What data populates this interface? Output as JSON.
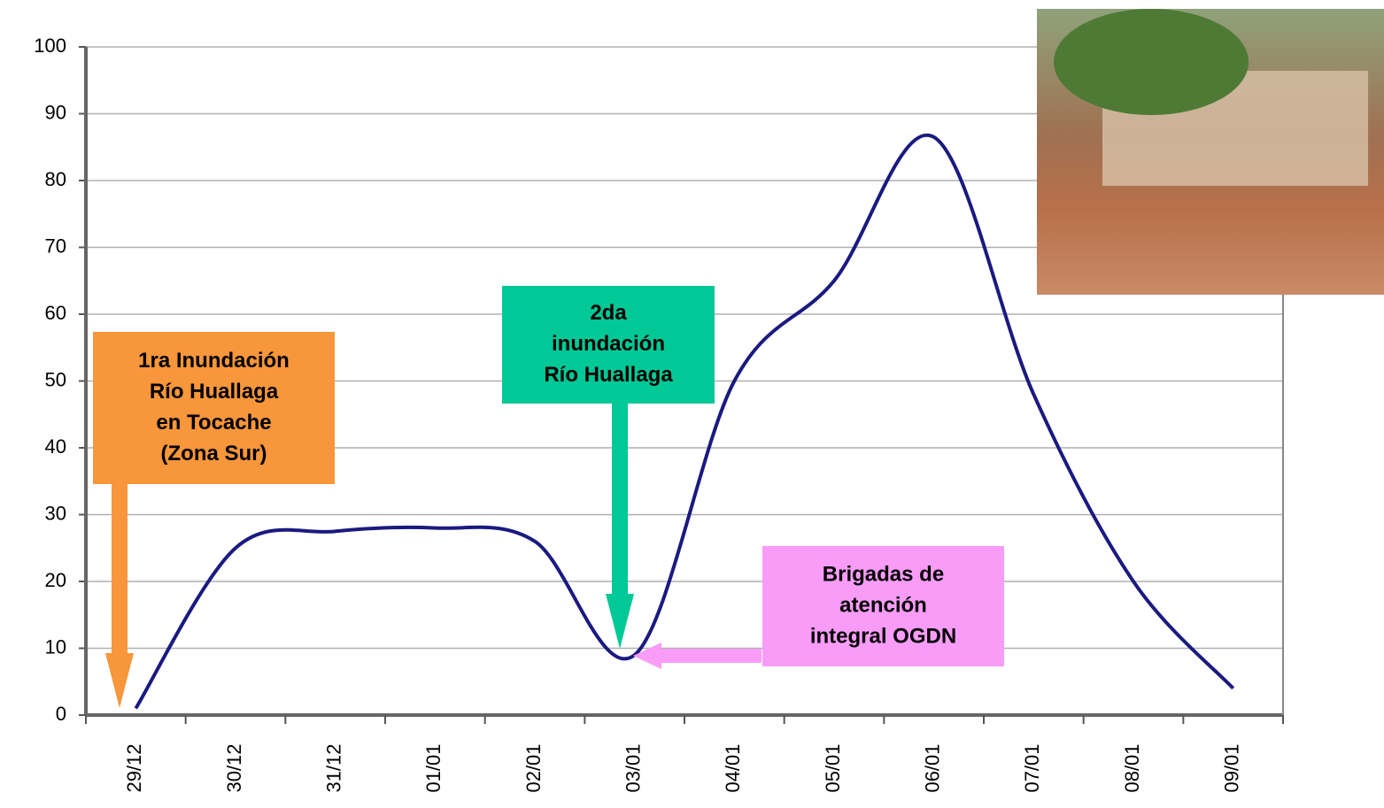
{
  "chart_data": {
    "type": "line",
    "categories": [
      "29/12",
      "30/12",
      "31/12",
      "01/01",
      "02/01",
      "03/01",
      "04/01",
      "05/01",
      "06/01",
      "07/01",
      "08/01",
      "09/01"
    ],
    "series": [
      {
        "name": null,
        "color": "#1a1a80",
        "values": [
          1,
          25,
          27.5,
          28,
          26,
          9,
          50,
          65,
          86.5,
          48,
          20,
          4
        ]
      }
    ],
    "ylim": [
      0,
      100
    ],
    "yticks": [
      0,
      10,
      20,
      30,
      40,
      50,
      60,
      70,
      80,
      90,
      100
    ],
    "grid": true,
    "annotations": [
      {
        "lines": [
          "1ra Inundación",
          "Río Huallaga",
          "en Tocache",
          "(Zona Sur)"
        ],
        "color": "#f7963a"
      },
      {
        "lines": [
          "2da",
          "inundación",
          "Río Huallaga"
        ],
        "color": "#00c896"
      },
      {
        "lines": [
          "Brigadas de",
          "atención",
          "integral OGDN"
        ],
        "color": "#f89cf8"
      }
    ]
  }
}
